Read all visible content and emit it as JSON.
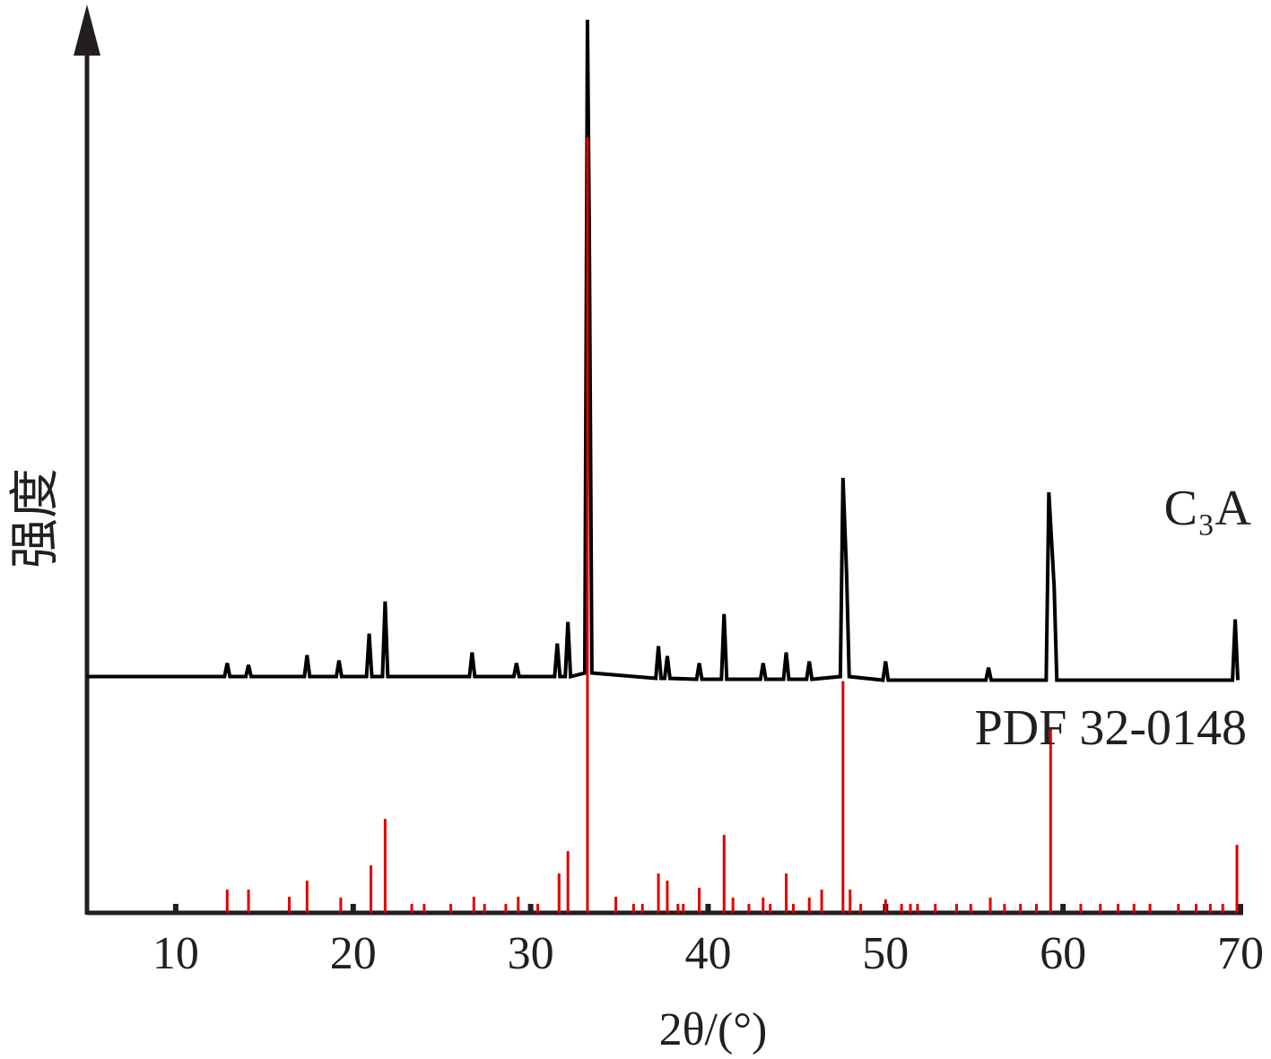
{
  "chart_data": {
    "type": "line",
    "xlabel": "2θ/(°)",
    "ylabel": "强度",
    "xlim": [
      5,
      70
    ],
    "xticks": [
      10,
      20,
      30,
      40,
      50,
      60,
      70
    ],
    "ylim": [
      0,
      100
    ],
    "series": [
      {
        "name": "C₃A",
        "color": "#000000",
        "style": "line",
        "x": [
          5,
          12.75,
          12.9,
          13.05,
          13.95,
          14.1,
          14.25,
          17.25,
          17.4,
          17.55,
          19.05,
          19.2,
          19.35,
          20.75,
          20.9,
          21.05,
          21.65,
          21.8,
          21.95,
          26.55,
          26.7,
          26.85,
          29.05,
          29.2,
          29.35,
          31.35,
          31.5,
          31.65,
          31.95,
          32.1,
          32.25,
          33.05,
          33.2,
          33.3,
          33.45,
          37.05,
          37.2,
          37.35,
          37.55,
          37.7,
          37.85,
          39.35,
          39.5,
          39.65,
          40.75,
          40.9,
          41.05,
          42.95,
          43.1,
          43.25,
          44.25,
          44.4,
          44.55,
          45.55,
          45.7,
          45.85,
          47.45,
          47.6,
          47.8,
          47.95,
          49.85,
          50.0,
          50.15,
          55.65,
          55.8,
          55.95,
          59.05,
          59.2,
          59.5,
          59.65,
          69.55,
          69.7,
          69.85
        ],
        "y": [
          26.4,
          26.4,
          27.9,
          26.4,
          26.4,
          27.7,
          26.4,
          26.4,
          28.8,
          26.4,
          26.4,
          28.2,
          26.4,
          26.4,
          31.2,
          26.4,
          26.4,
          34.8,
          26.4,
          26.4,
          29.1,
          26.4,
          26.4,
          27.9,
          26.4,
          26.4,
          30.1,
          26.4,
          26.4,
          32.5,
          26.4,
          26.8,
          99.8,
          77.2,
          26.8,
          26.2,
          29.8,
          26.2,
          26.2,
          28.7,
          26.2,
          26.1,
          27.9,
          26.1,
          26.1,
          33.4,
          26.1,
          26.1,
          27.9,
          26.1,
          26.1,
          29.1,
          26.1,
          26.1,
          28.1,
          26.1,
          26.4,
          48.6,
          38.1,
          26.4,
          26.0,
          28.1,
          26.0,
          26.0,
          27.4,
          26.0,
          26.0,
          47.0,
          36.4,
          26.0,
          26.0,
          32.8,
          26.0
        ]
      },
      {
        "name": "PDF 32-0148",
        "color": "#e00000",
        "style": "stick",
        "x": [
          12.9,
          14.1,
          16.4,
          17.4,
          19.3,
          21.0,
          21.8,
          23.3,
          24.0,
          25.5,
          26.8,
          27.4,
          28.6,
          29.3,
          30.4,
          31.6,
          32.1,
          33.2,
          34.8,
          35.8,
          36.3,
          37.2,
          37.7,
          38.3,
          38.6,
          39.5,
          40.9,
          41.4,
          42.3,
          43.1,
          43.5,
          44.4,
          44.8,
          45.7,
          46.4,
          47.6,
          48.0,
          48.6,
          50.0,
          50.9,
          51.4,
          51.8,
          52.8,
          54.0,
          54.8,
          55.9,
          56.7,
          57.6,
          58.5,
          59.3,
          61.0,
          62.1,
          63.1,
          64.0,
          64.9,
          66.5,
          67.5,
          68.3,
          69.0,
          69.8
        ],
        "y": [
          2.6,
          2.6,
          1.8,
          3.6,
          1.7,
          5.3,
          10.5,
          1.0,
          1.0,
          1.0,
          1.8,
          1.0,
          1.0,
          1.8,
          1.0,
          4.4,
          6.9,
          86.7,
          1.8,
          1.0,
          1.0,
          4.4,
          3.6,
          1.0,
          1.0,
          2.8,
          8.7,
          1.7,
          1.0,
          1.7,
          1.0,
          4.4,
          1.0,
          1.7,
          2.6,
          25.9,
          2.6,
          1.0,
          1.5,
          1.0,
          1.0,
          1.0,
          1.0,
          1.0,
          1.0,
          1.7,
          1.0,
          1.0,
          1.0,
          20.6,
          1.0,
          1.0,
          1.0,
          1.0,
          1.0,
          1.0,
          1.0,
          1.0,
          1.0,
          7.6
        ]
      }
    ]
  }
}
